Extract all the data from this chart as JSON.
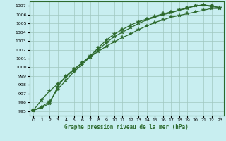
{
  "title": "Graphe pression niveau de la mer (hPa)",
  "background_color": "#c8eef0",
  "grid_color": "#a0c8c0",
  "line_color": "#2d6a2d",
  "marker_color": "#2d6a2d",
  "xlim": [
    -0.5,
    23.5
  ],
  "ylim": [
    994.5,
    1007.5
  ],
  "xticks": [
    0,
    1,
    2,
    3,
    4,
    5,
    6,
    7,
    8,
    9,
    10,
    11,
    12,
    13,
    14,
    15,
    16,
    17,
    18,
    19,
    20,
    21,
    22,
    23
  ],
  "yticks": [
    995,
    996,
    997,
    998,
    999,
    1000,
    1001,
    1002,
    1003,
    1004,
    1005,
    1006,
    1007
  ],
  "series": [
    [
      995.1,
      996.3,
      997.3,
      998.1,
      998.9,
      999.7,
      1000.5,
      1001.2,
      1001.8,
      1002.4,
      1002.9,
      1003.4,
      1003.8,
      1004.3,
      1004.7,
      1005.1,
      1005.4,
      1005.7,
      1005.9,
      1006.1,
      1006.3,
      1006.5,
      1006.7,
      1006.7
    ],
    [
      995.1,
      995.5,
      996.1,
      997.5,
      998.5,
      999.5,
      1000.3,
      1001.2,
      1002.0,
      1002.8,
      1003.5,
      1004.0,
      1004.5,
      1005.0,
      1005.4,
      1005.7,
      1006.0,
      1006.2,
      1006.5,
      1006.7,
      1007.0,
      1007.1,
      1007.0,
      1006.8
    ],
    [
      995.1,
      995.4,
      995.9,
      997.8,
      999.0,
      999.8,
      1000.5,
      1001.3,
      1002.2,
      1003.1,
      1003.8,
      1004.3,
      1004.8,
      1005.2,
      1005.5,
      1005.8,
      1006.1,
      1006.3,
      1006.5,
      1006.8,
      1007.0,
      1007.1,
      1006.9,
      1006.8
    ]
  ],
  "markers": [
    "*",
    "*",
    "*"
  ],
  "markersizes": [
    4,
    4,
    4
  ],
  "linewidths": [
    0.9,
    0.9,
    0.9
  ]
}
